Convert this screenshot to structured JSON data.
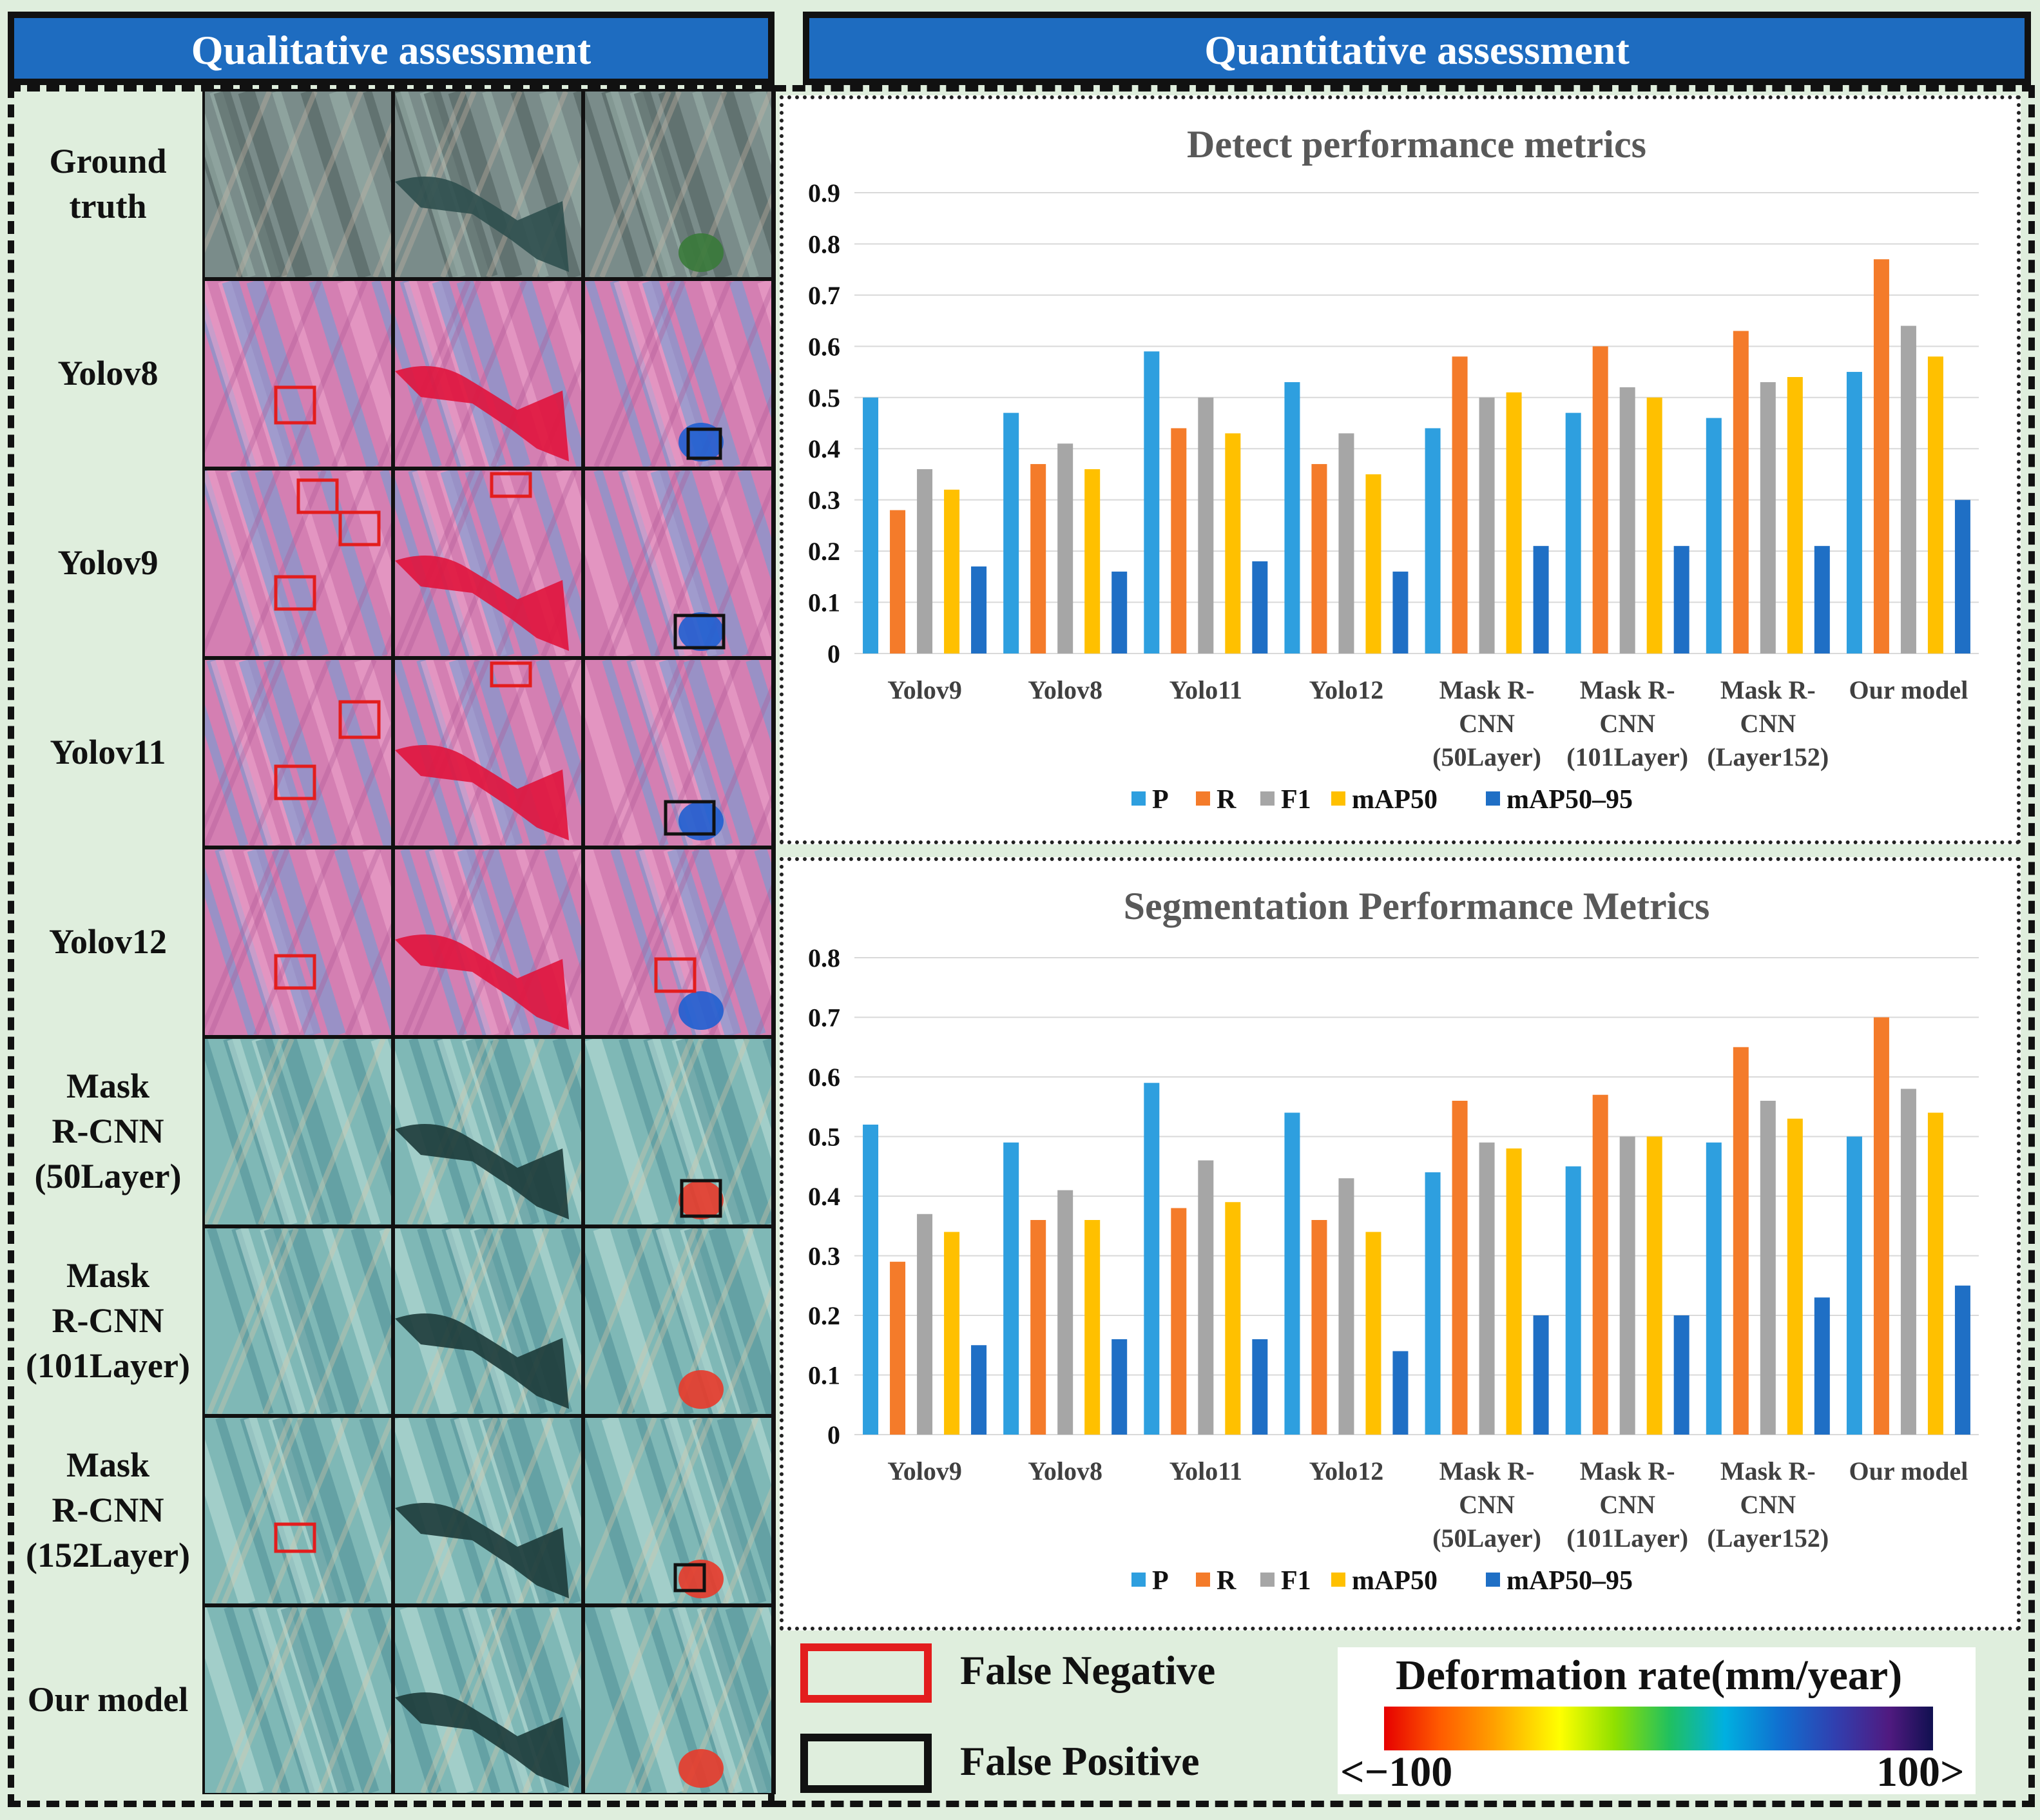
{
  "headers": {
    "qualitative": "Qualitative assessment",
    "quantitative": "Quantitative assessment"
  },
  "rows": [
    {
      "label": "Ground\ntruth",
      "style": "gt"
    },
    {
      "label": "Yolov8",
      "style": "pink"
    },
    {
      "label": "Yolov9",
      "style": "pink"
    },
    {
      "label": "Yolov11",
      "style": "pink"
    },
    {
      "label": "Yolov12",
      "style": "pink"
    },
    {
      "label": "Mask\nR-CNN\n(50Layer)",
      "style": "cyan"
    },
    {
      "label": "Mask\nR-CNN\n(101Layer)",
      "style": "cyan"
    },
    {
      "label": "Mask\nR-CNN\n(152Layer)",
      "style": "cyan"
    },
    {
      "label": "Our model",
      "style": "cyan"
    }
  ],
  "legend": {
    "false_negative": "False Negative",
    "false_positive": "False Positive",
    "colorbar_title": "Deformation rate(mm/year)",
    "colorbar_min": "<−100",
    "colorbar_max": "100>"
  },
  "colors": {
    "P": "#2e9fdf",
    "R": "#f47b2a",
    "F1": "#a6a6a6",
    "mAP50": "#ffc000",
    "mAP50_95": "#1f6fc5",
    "header_bg": "#1e6cc0",
    "page_bg": "#dfeedd"
  },
  "chart_data": [
    {
      "type": "bar",
      "title": "Detect performance metrics",
      "categories": [
        "Yolov9",
        "Yolov8",
        "Yolo11",
        "Yolo12",
        "Mask R-\nCNN\n(50Layer)",
        "Mask R-\nCNN\n(101Layer)",
        "Mask R-\nCNN\n(Layer152)",
        "Our model"
      ],
      "ylim": [
        0,
        0.9
      ],
      "yticks": [
        0,
        0.1,
        0.2,
        0.3,
        0.4,
        0.5,
        0.6,
        0.7,
        0.8,
        0.9
      ],
      "ytick_labels": [
        "0",
        "0.1",
        "0.2",
        "0.3",
        "0.4",
        "0.5",
        "0.6",
        "0.7",
        "0.8",
        "0.9"
      ],
      "grid": true,
      "legend_position": "bottom",
      "series": [
        {
          "name": "P",
          "values": [
            0.5,
            0.47,
            0.59,
            0.53,
            0.44,
            0.47,
            0.46,
            0.55
          ]
        },
        {
          "name": "R",
          "values": [
            0.28,
            0.37,
            0.44,
            0.37,
            0.58,
            0.6,
            0.63,
            0.77
          ]
        },
        {
          "name": "F1",
          "values": [
            0.36,
            0.41,
            0.5,
            0.43,
            0.5,
            0.52,
            0.53,
            0.64
          ]
        },
        {
          "name": "mAP50",
          "values": [
            0.32,
            0.36,
            0.43,
            0.35,
            0.51,
            0.5,
            0.54,
            0.58
          ]
        },
        {
          "name": "mAP50–95",
          "values": [
            0.17,
            0.16,
            0.18,
            0.16,
            0.21,
            0.21,
            0.21,
            0.3
          ]
        }
      ]
    },
    {
      "type": "bar",
      "title": "Segmentation Performance Metrics",
      "categories": [
        "Yolov9",
        "Yolov8",
        "Yolo11",
        "Yolo12",
        "Mask R-\nCNN\n(50Layer)",
        "Mask R-\nCNN\n(101Layer)",
        "Mask R-\nCNN\n(Layer152)",
        "Our model"
      ],
      "ylim": [
        0,
        0.8
      ],
      "yticks": [
        0,
        0.1,
        0.2,
        0.3,
        0.4,
        0.5,
        0.6,
        0.7,
        0.8
      ],
      "ytick_labels": [
        "0",
        "0.1",
        "0.2",
        "0.3",
        "0.4",
        "0.5",
        "0.6",
        "0.7",
        "0.8"
      ],
      "grid": true,
      "legend_position": "bottom",
      "series": [
        {
          "name": "P",
          "values": [
            0.52,
            0.49,
            0.59,
            0.54,
            0.44,
            0.45,
            0.49,
            0.5
          ]
        },
        {
          "name": "R",
          "values": [
            0.29,
            0.36,
            0.38,
            0.36,
            0.56,
            0.57,
            0.65,
            0.7
          ]
        },
        {
          "name": "F1",
          "values": [
            0.37,
            0.41,
            0.46,
            0.43,
            0.49,
            0.5,
            0.56,
            0.58
          ]
        },
        {
          "name": "mAP50",
          "values": [
            0.34,
            0.36,
            0.39,
            0.34,
            0.48,
            0.5,
            0.53,
            0.54
          ]
        },
        {
          "name": "mAP50–95",
          "values": [
            0.15,
            0.16,
            0.16,
            0.14,
            0.2,
            0.2,
            0.23,
            0.25
          ]
        }
      ]
    }
  ]
}
